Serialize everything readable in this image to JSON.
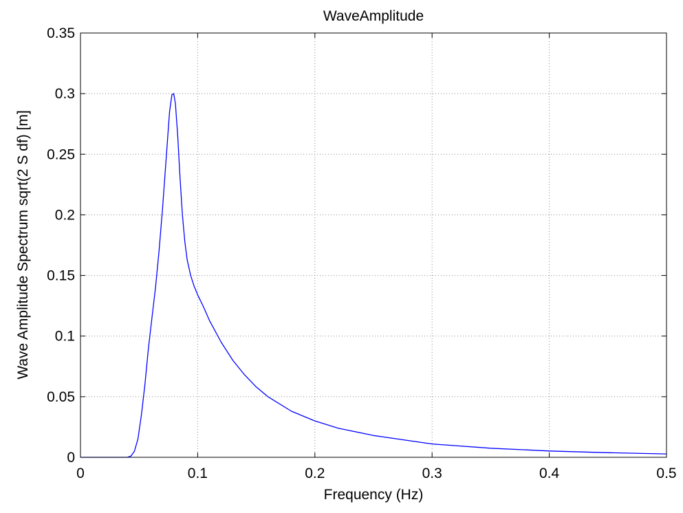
{
  "chart_data": {
    "type": "line",
    "title": "WaveAmplitude",
    "xlabel": "Frequency (Hz)",
    "ylabel": "Wave Amplitude Spectrum sqrt(2 S df) [m]",
    "xlim": [
      0,
      0.5
    ],
    "ylim": [
      0,
      0.35
    ],
    "xticks": [
      0,
      0.1,
      0.2,
      0.3,
      0.4,
      0.5
    ],
    "xtick_labels": [
      "0",
      "0.1",
      "0.2",
      "0.3",
      "0.4",
      "0.5"
    ],
    "yticks": [
      0,
      0.05,
      0.1,
      0.15,
      0.2,
      0.25,
      0.3,
      0.35
    ],
    "ytick_labels": [
      "0",
      "0.05",
      "0.1",
      "0.15",
      "0.2",
      "0.25",
      "0.3",
      "0.35"
    ],
    "grid": true,
    "series": [
      {
        "name": "WaveAmplitude",
        "color": "#0000ff",
        "x": [
          0,
          0.03,
          0.04,
          0.043,
          0.046,
          0.049,
          0.052,
          0.055,
          0.058,
          0.061,
          0.064,
          0.067,
          0.07,
          0.073,
          0.076,
          0.078,
          0.0795,
          0.081,
          0.083,
          0.085,
          0.087,
          0.089,
          0.091,
          0.094,
          0.097,
          0.1,
          0.105,
          0.11,
          0.12,
          0.13,
          0.14,
          0.15,
          0.16,
          0.18,
          0.2,
          0.22,
          0.25,
          0.3,
          0.35,
          0.4,
          0.45,
          0.5
        ],
        "y": [
          0,
          0,
          0,
          0.001,
          0.005,
          0.015,
          0.035,
          0.06,
          0.09,
          0.115,
          0.14,
          0.17,
          0.205,
          0.245,
          0.285,
          0.299,
          0.3,
          0.292,
          0.265,
          0.23,
          0.2,
          0.178,
          0.163,
          0.15,
          0.141,
          0.134,
          0.124,
          0.113,
          0.095,
          0.08,
          0.068,
          0.058,
          0.05,
          0.038,
          0.03,
          0.024,
          0.018,
          0.011,
          0.0075,
          0.0052,
          0.0038,
          0.0028
        ]
      }
    ]
  }
}
